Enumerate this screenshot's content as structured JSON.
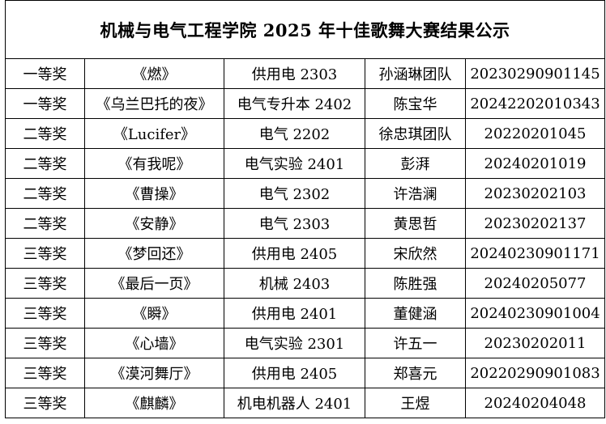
{
  "document": {
    "title": "机械与电气工程学院 2025 年十佳歌舞大赛结果公示"
  },
  "results": [
    {
      "award": "一等奖",
      "work": "《燃》",
      "class": "供用电 2303",
      "performer": "孙涵琳团队",
      "student_id": "20230290901145"
    },
    {
      "award": "一等奖",
      "work": "《乌兰巴托的夜》",
      "class": "电气专升本 2402",
      "performer": "陈宝华",
      "student_id": "20242202010343"
    },
    {
      "award": "二等奖",
      "work": "《Lucifer》",
      "class": "电气 2202",
      "performer": "徐忠琪团队",
      "student_id": "20220201045"
    },
    {
      "award": "二等奖",
      "work": "《有我呢》",
      "class": "电气实验 2401",
      "performer": "彭湃",
      "student_id": "20240201019"
    },
    {
      "award": "二等奖",
      "work": "《曹操》",
      "class": "电气 2302",
      "performer": "许浩澜",
      "student_id": "20230202103"
    },
    {
      "award": "二等奖",
      "work": "《安静》",
      "class": "电气 2303",
      "performer": "黄思哲",
      "student_id": "20230202137"
    },
    {
      "award": "三等奖",
      "work": "《梦回还》",
      "class": "供用电 2405",
      "performer": "宋欣然",
      "student_id": "20240230901171"
    },
    {
      "award": "三等奖",
      "work": "《最后一页》",
      "class": "机械 2403",
      "performer": "陈胜强",
      "student_id": "20240205077"
    },
    {
      "award": "三等奖",
      "work": "《瞬》",
      "class": "供用电 2401",
      "performer": "董健涵",
      "student_id": "20240230901004"
    },
    {
      "award": "三等奖",
      "work": "《心墙》",
      "class": "电气实验 2301",
      "performer": "许五一",
      "student_id": "20230202011"
    },
    {
      "award": "三等奖",
      "work": "《漠河舞厅》",
      "class": "供用电 2405",
      "performer": "郑喜元",
      "student_id": "20220290901083"
    },
    {
      "award": "三等奖",
      "work": "《麒麟》",
      "class": "机电机器人 2401",
      "performer": "王煜",
      "student_id": "20240204048"
    }
  ]
}
